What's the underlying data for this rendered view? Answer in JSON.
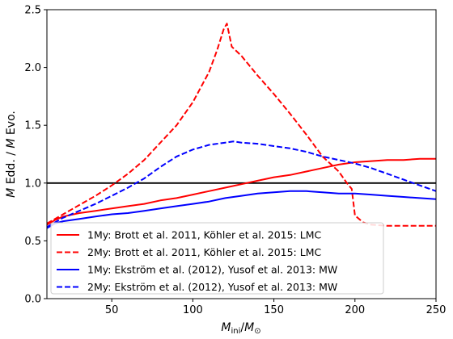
{
  "chart_data": {
    "type": "line",
    "xlabel": "M_ini/M_⊙",
    "ylabel": "M Edd. / M Evo.",
    "xlim": [
      10,
      250
    ],
    "ylim": [
      0,
      2.5
    ],
    "xticks": [
      50,
      100,
      150,
      200,
      250
    ],
    "yticks": [
      0.0,
      0.5,
      1.0,
      1.5,
      2.0,
      2.5
    ],
    "ytick_labels": [
      "0.0",
      "0.5",
      "1.0",
      "1.5",
      "2.0",
      "2.5"
    ],
    "reference_line": {
      "y": 1.0,
      "color": "#000000"
    },
    "legend_position": "lower-left",
    "series": [
      {
        "name": "1My: Brott et al. 2011, Köhler et al. 2015: LMC",
        "color": "#ff0000",
        "style": "solid",
        "x": [
          10,
          15,
          20,
          30,
          40,
          50,
          60,
          70,
          80,
          90,
          100,
          110,
          120,
          130,
          140,
          150,
          160,
          170,
          180,
          190,
          200,
          210,
          220,
          230,
          240,
          250
        ],
        "y": [
          0.64,
          0.68,
          0.71,
          0.74,
          0.76,
          0.78,
          0.8,
          0.82,
          0.85,
          0.87,
          0.9,
          0.93,
          0.96,
          0.99,
          1.02,
          1.05,
          1.07,
          1.1,
          1.13,
          1.16,
          1.18,
          1.19,
          1.2,
          1.2,
          1.21,
          1.21
        ]
      },
      {
        "name": "2My: Brott et al. 2011, Köhler et al. 2015: LMC",
        "color": "#ff0000",
        "style": "dashed",
        "x": [
          10,
          20,
          30,
          40,
          50,
          60,
          70,
          80,
          90,
          100,
          110,
          115,
          119,
          121,
          124,
          130,
          140,
          150,
          160,
          170,
          180,
          190,
          195,
          198,
          200,
          205,
          210,
          220,
          230,
          240,
          250
        ],
        "y": [
          0.65,
          0.73,
          0.81,
          0.89,
          0.98,
          1.08,
          1.2,
          1.35,
          1.5,
          1.7,
          1.96,
          2.15,
          2.33,
          2.38,
          2.18,
          2.1,
          1.93,
          1.77,
          1.6,
          1.42,
          1.23,
          1.1,
          1.0,
          0.95,
          0.72,
          0.66,
          0.64,
          0.63,
          0.63,
          0.63,
          0.63
        ]
      },
      {
        "name": "1My: Ekström et al. (2012), Yusof et al. 2013: MW",
        "color": "#0000ff",
        "style": "solid",
        "x": [
          10,
          15,
          20,
          30,
          40,
          50,
          60,
          70,
          80,
          90,
          100,
          110,
          120,
          130,
          140,
          150,
          160,
          170,
          180,
          190,
          200,
          210,
          220,
          230,
          240,
          250
        ],
        "y": [
          0.61,
          0.65,
          0.67,
          0.69,
          0.71,
          0.73,
          0.74,
          0.76,
          0.78,
          0.8,
          0.82,
          0.84,
          0.87,
          0.89,
          0.91,
          0.92,
          0.93,
          0.93,
          0.92,
          0.91,
          0.91,
          0.9,
          0.89,
          0.88,
          0.87,
          0.86
        ]
      },
      {
        "name": "2My: Ekström et al. (2012), Yusof et al. 2013: MW",
        "color": "#0000ff",
        "style": "dashed",
        "x": [
          10,
          20,
          30,
          40,
          50,
          60,
          70,
          80,
          90,
          100,
          110,
          120,
          125,
          130,
          140,
          150,
          160,
          170,
          180,
          190,
          200,
          210,
          220,
          230,
          240,
          250
        ],
        "y": [
          0.62,
          0.7,
          0.76,
          0.82,
          0.89,
          0.96,
          1.04,
          1.14,
          1.23,
          1.29,
          1.33,
          1.35,
          1.36,
          1.35,
          1.34,
          1.32,
          1.3,
          1.27,
          1.23,
          1.2,
          1.17,
          1.13,
          1.08,
          1.03,
          0.98,
          0.93
        ]
      }
    ]
  }
}
